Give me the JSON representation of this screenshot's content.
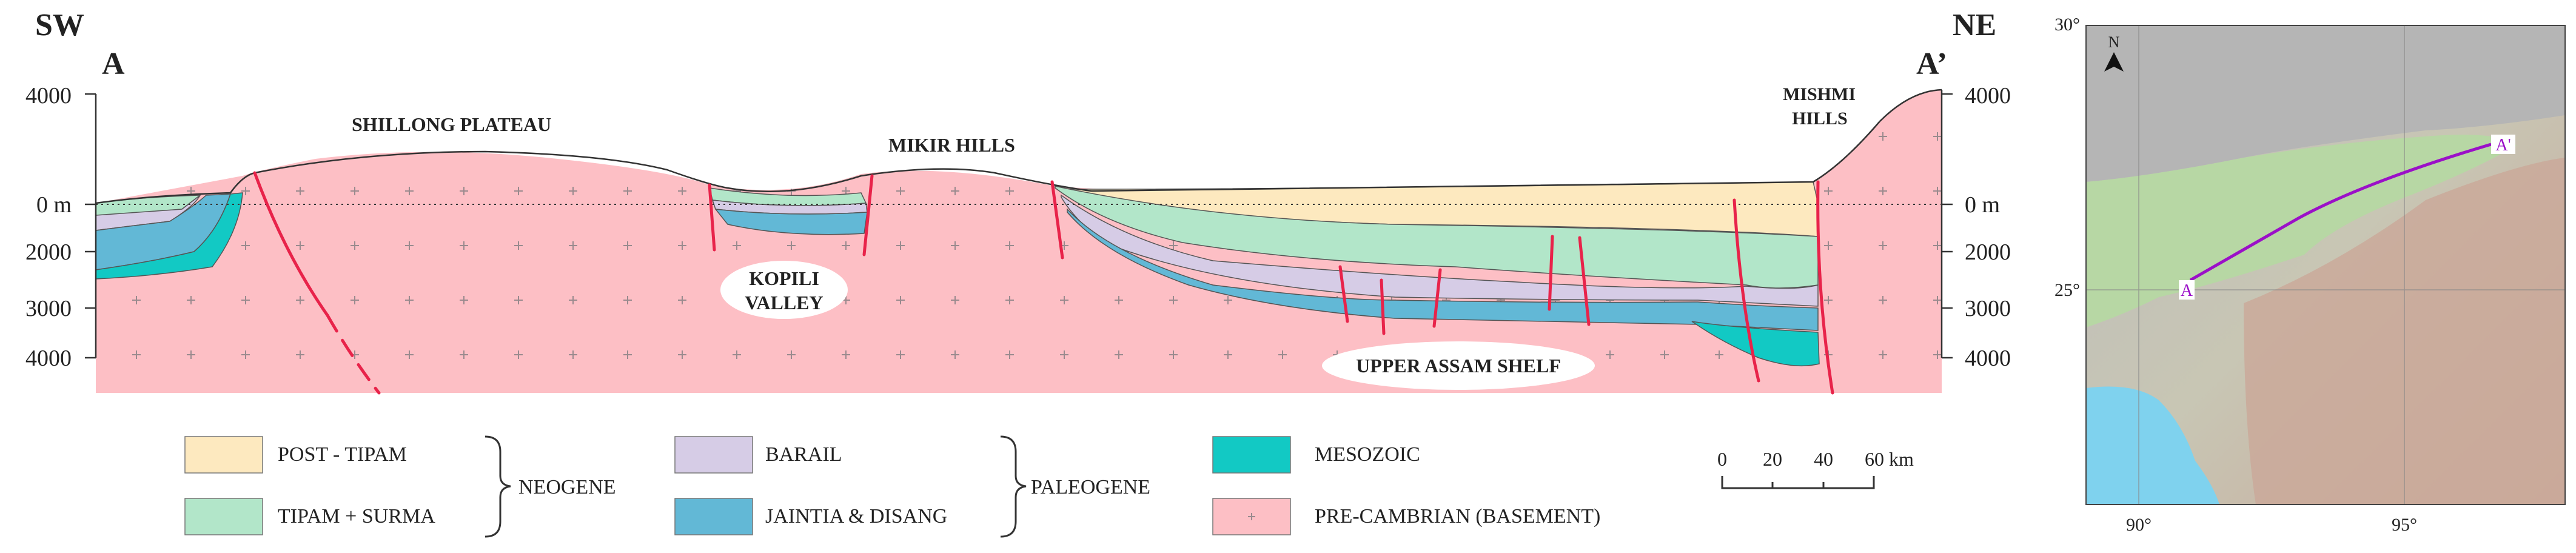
{
  "section": {
    "sw": "SW",
    "ne": "NE",
    "a": "A",
    "a_prime": "A’",
    "y_ticks_left": [
      "4000",
      "0 m",
      "2000",
      "3000",
      "4000"
    ],
    "y_ticks_right": [
      "4000",
      "0 m",
      "2000",
      "3000",
      "4000"
    ],
    "labels": {
      "shillong": "SHILLONG PLATEAU",
      "mikir": "MIKIR HILLS",
      "mishmi_1": "MISHMI",
      "mishmi_2": "HILLS",
      "kopili_1": "KOPILI",
      "kopili_2": "VALLEY",
      "upper_assam": "UPPER ASSAM SHELF"
    },
    "colors": {
      "post_tipam": "#fde9bf",
      "tipam_surma": "#b2e6c9",
      "barail": "#d6cce6",
      "jaintia": "#62b8d6",
      "mesozoic": "#12c9c4",
      "basement": "#fdbfc5",
      "fault": "#e8234a"
    }
  },
  "legend": {
    "post_tipam": "POST - TIPAM",
    "tipam_surma": "TIPAM + SURMA",
    "neogene": "NEOGENE",
    "barail": "BARAIL",
    "jaintia": "JAINTIA & DISANG",
    "paleogene": "PALEOGENE",
    "mesozoic": "MESOZOIC",
    "precambrian": "PRE-CAMBRIAN (BASEMENT)"
  },
  "scale": {
    "ticks": [
      "0",
      "20",
      "40",
      "60 km"
    ]
  },
  "map": {
    "north": "N",
    "lat_top": "30°",
    "lat_mid": "25°",
    "lon_left": "90°",
    "lon_right": "95°",
    "point_a": "A",
    "point_a_prime": "A'",
    "line_color": "#9b10c8"
  }
}
